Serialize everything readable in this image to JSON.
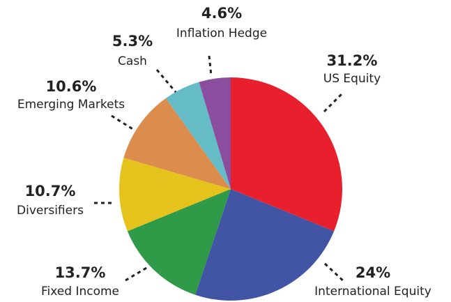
{
  "chart_data": {
    "type": "pie",
    "categories": [
      "US Equity",
      "International Equity",
      "Fixed Income",
      "Diversifiers",
      "Emerging Markets",
      "Cash",
      "Inflation Hedge"
    ],
    "values": [
      31.2,
      24,
      13.7,
      10.7,
      10.6,
      5.3,
      4.6
    ],
    "value_labels": [
      "31.2%",
      "24%",
      "13.7%",
      "10.7%",
      "10.6%",
      "5.3%",
      "4.6%"
    ],
    "colors": [
      "#e8202e",
      "#4254a4",
      "#2f9a48",
      "#e6c21c",
      "#dc8c4c",
      "#66bcc6",
      "#8b4d9e"
    ]
  }
}
